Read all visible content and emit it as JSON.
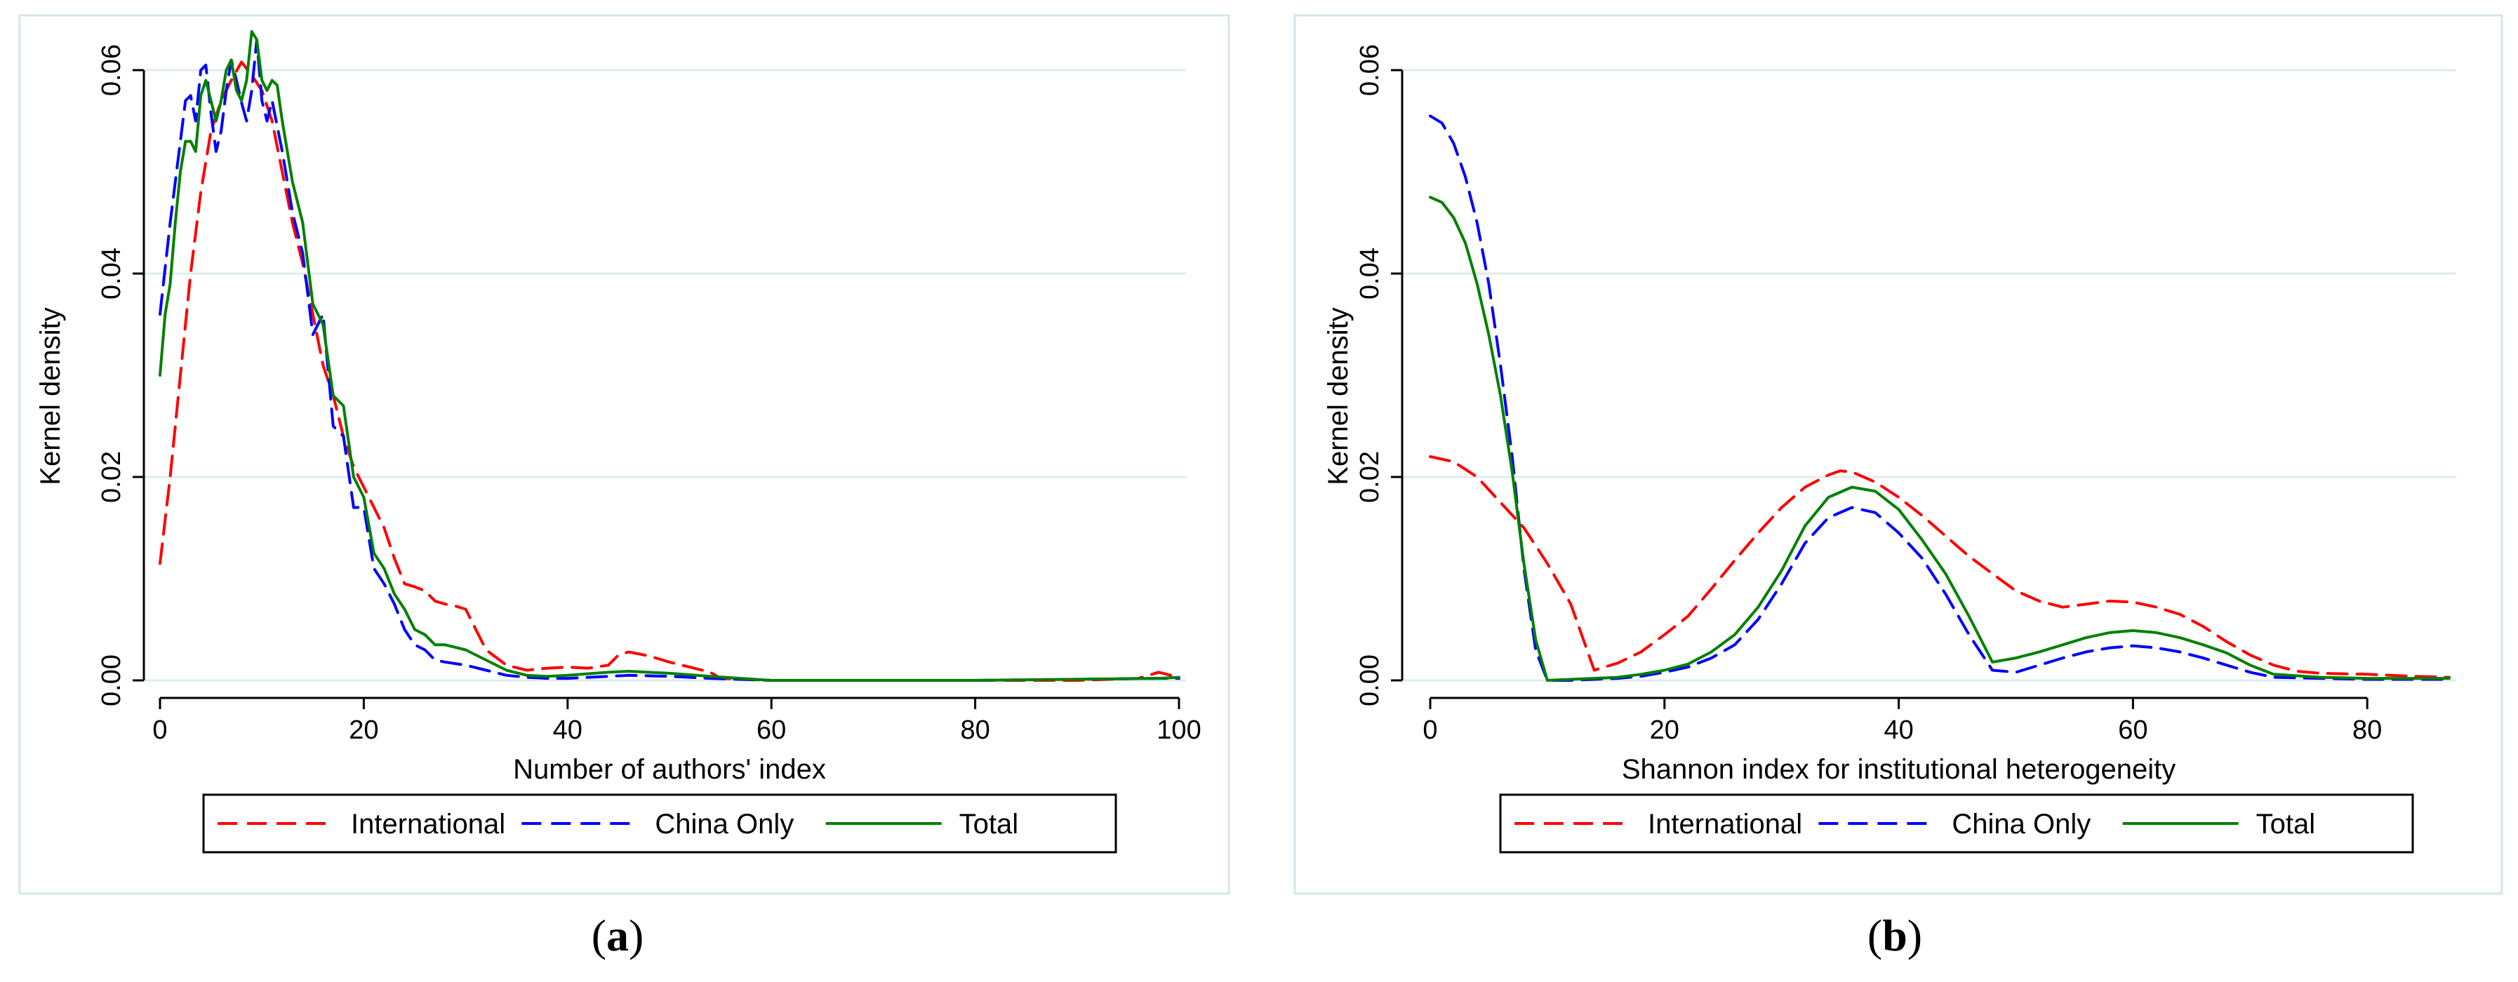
{
  "chart_data": [
    {
      "type": "line",
      "panel": "a",
      "caption": "(a)",
      "caption_letter": "a",
      "xlabel": "Number of authors' index",
      "ylabel": "Kernel density",
      "xlim": [
        0,
        100
      ],
      "ylim": [
        0,
        0.06
      ],
      "xticks": [
        0,
        20,
        40,
        60,
        80,
        100
      ],
      "yticks": [
        0,
        0.02,
        0.04,
        0.06
      ],
      "xtick_labels": [
        "0",
        "20",
        "40",
        "60",
        "80",
        "100"
      ],
      "ytick_labels": [
        "0.00",
        "0.02",
        "0.04",
        "0.06"
      ],
      "grid": "horizontal",
      "legend": [
        "International",
        "China Only",
        "Total"
      ],
      "series": [
        {
          "name": "International",
          "color": "#ff0000",
          "dash": "dashed",
          "x": [
            0,
            1,
            2,
            3,
            4,
            5,
            6,
            7,
            8,
            9,
            10,
            11,
            12,
            13,
            14,
            15,
            16,
            17,
            18,
            19,
            20,
            21,
            22,
            23,
            24,
            25,
            26,
            27,
            28,
            29,
            30,
            31,
            32,
            34,
            36,
            38,
            40,
            42,
            44,
            45,
            46,
            48,
            50,
            52,
            54,
            55,
            60,
            70,
            80,
            90,
            96,
            98,
            100
          ],
          "y": [
            0.0115,
            0.02,
            0.03,
            0.04,
            0.048,
            0.054,
            0.057,
            0.059,
            0.0608,
            0.0595,
            0.058,
            0.055,
            0.05,
            0.045,
            0.041,
            0.036,
            0.031,
            0.028,
            0.024,
            0.021,
            0.019,
            0.017,
            0.015,
            0.012,
            0.0095,
            0.0092,
            0.0088,
            0.0078,
            0.0075,
            0.0073,
            0.007,
            0.005,
            0.003,
            0.0015,
            0.001,
            0.0012,
            0.0013,
            0.0012,
            0.0015,
            0.0025,
            0.0028,
            0.0024,
            0.0018,
            0.0013,
            0.0008,
            0.0002,
            0.0,
            0.0,
            0.0,
            0.0,
            0.0002,
            0.0008,
            0.0003
          ]
        },
        {
          "name": "China Only",
          "color": "#0000ff",
          "dash": "dashed",
          "x": [
            0,
            1,
            2,
            2.5,
            3,
            3.5,
            4,
            4.5,
            5,
            5.5,
            6,
            6.5,
            7,
            7.5,
            8,
            8.5,
            9,
            9.5,
            10,
            10.5,
            11,
            12,
            13,
            14,
            15,
            16,
            17,
            18,
            19,
            20,
            21,
            22,
            23,
            24,
            25,
            26,
            27,
            28,
            30,
            32,
            34,
            36,
            38,
            40,
            44,
            46,
            50,
            54,
            60,
            80,
            98,
            100
          ],
          "y": [
            0.036,
            0.045,
            0.053,
            0.057,
            0.0575,
            0.055,
            0.06,
            0.0605,
            0.0558,
            0.052,
            0.054,
            0.058,
            0.061,
            0.059,
            0.0568,
            0.055,
            0.058,
            0.063,
            0.057,
            0.055,
            0.057,
            0.052,
            0.046,
            0.042,
            0.034,
            0.036,
            0.025,
            0.024,
            0.017,
            0.017,
            0.011,
            0.0095,
            0.0075,
            0.005,
            0.0035,
            0.003,
            0.002,
            0.0018,
            0.0015,
            0.001,
            0.0005,
            0.0003,
            0.0002,
            0.0002,
            0.0004,
            0.0005,
            0.0004,
            0.0002,
            0.0,
            0.0,
            0.0002,
            0.0002
          ]
        },
        {
          "name": "Total",
          "color": "#008000",
          "dash": "solid",
          "x": [
            0,
            0.5,
            1,
            1.5,
            2,
            2.5,
            3,
            3.5,
            4,
            4.5,
            5,
            5.5,
            6,
            6.5,
            7,
            7.5,
            8,
            8.5,
            9,
            9.5,
            10,
            10.5,
            11,
            11.5,
            12,
            13,
            14,
            15,
            16,
            17,
            18,
            19,
            20,
            21,
            22,
            23,
            24,
            25,
            26,
            27,
            28,
            30,
            32,
            34,
            36,
            38,
            40,
            44,
            46,
            50,
            54,
            60,
            80,
            98,
            100
          ],
          "y": [
            0.03,
            0.036,
            0.039,
            0.045,
            0.05,
            0.053,
            0.053,
            0.052,
            0.0575,
            0.059,
            0.057,
            0.055,
            0.057,
            0.06,
            0.061,
            0.058,
            0.057,
            0.059,
            0.0638,
            0.063,
            0.059,
            0.058,
            0.059,
            0.0585,
            0.055,
            0.049,
            0.045,
            0.037,
            0.035,
            0.028,
            0.027,
            0.02,
            0.018,
            0.0125,
            0.011,
            0.0085,
            0.007,
            0.005,
            0.0045,
            0.0035,
            0.0035,
            0.003,
            0.002,
            0.001,
            0.0005,
            0.0004,
            0.0005,
            0.0008,
            0.0009,
            0.0007,
            0.0004,
            0.0,
            0.0,
            0.0002,
            0.0003
          ]
        }
      ]
    },
    {
      "type": "line",
      "panel": "b",
      "caption": "(b)",
      "caption_letter": "b",
      "xlabel": "Shannon index for institutional heterogeneity",
      "ylabel": "Kernel density",
      "xlim": [
        0,
        87
      ],
      "ylim": [
        0,
        0.06
      ],
      "xticks": [
        0,
        20,
        40,
        60,
        80
      ],
      "yticks": [
        0,
        0.02,
        0.04,
        0.06
      ],
      "xtick_labels": [
        "0",
        "20",
        "40",
        "60",
        "80"
      ],
      "ytick_labels": [
        "0.00",
        "0.02",
        "0.04",
        "0.06"
      ],
      "grid": "horizontal",
      "legend": [
        "International",
        "China Only",
        "Total"
      ],
      "series": [
        {
          "name": "International",
          "color": "#ff0000",
          "dash": "dashed",
          "x": [
            0,
            2,
            4,
            6,
            8,
            10,
            12,
            14,
            16,
            18,
            20,
            22,
            24,
            26,
            28,
            30,
            32,
            34,
            35,
            36,
            38,
            40,
            42,
            44,
            46,
            48,
            50,
            52,
            54,
            56,
            58,
            60,
            62,
            64,
            66,
            68,
            70,
            72,
            74,
            76,
            80,
            84,
            87
          ],
          "y": [
            0.022,
            0.0215,
            0.02,
            0.0175,
            0.015,
            0.0115,
            0.0075,
            0.001,
            0.0017,
            0.0028,
            0.0045,
            0.0063,
            0.009,
            0.0118,
            0.0145,
            0.017,
            0.019,
            0.0202,
            0.0206,
            0.0205,
            0.0195,
            0.018,
            0.0162,
            0.0142,
            0.0122,
            0.0105,
            0.0088,
            0.0078,
            0.0072,
            0.0075,
            0.0078,
            0.0077,
            0.0072,
            0.0065,
            0.0053,
            0.0038,
            0.0025,
            0.0015,
            0.0009,
            0.0007,
            0.0006,
            0.0004,
            0.0003
          ]
        },
        {
          "name": "China Only",
          "color": "#0000ff",
          "dash": "dashed",
          "x": [
            0,
            1,
            2,
            3,
            4,
            5,
            6,
            7,
            8,
            9,
            10,
            12,
            14,
            16,
            18,
            20,
            22,
            24,
            26,
            28,
            30,
            32,
            34,
            36,
            38,
            40,
            42,
            44,
            46,
            48,
            50,
            52,
            54,
            56,
            58,
            60,
            62,
            64,
            66,
            68,
            70,
            72,
            76,
            80,
            84,
            87
          ],
          "y": [
            0.0555,
            0.0548,
            0.0528,
            0.0495,
            0.045,
            0.039,
            0.031,
            0.022,
            0.011,
            0.003,
            0.0,
            0.0,
            0.0001,
            0.0002,
            0.0004,
            0.0008,
            0.0013,
            0.0022,
            0.0035,
            0.006,
            0.0095,
            0.0135,
            0.016,
            0.017,
            0.0165,
            0.0145,
            0.012,
            0.0085,
            0.0045,
            0.001,
            0.0008,
            0.0015,
            0.0022,
            0.0028,
            0.0032,
            0.0034,
            0.0032,
            0.0028,
            0.0022,
            0.0015,
            0.0008,
            0.0003,
            0.0002,
            0.0001,
            0.0001,
            0.0001
          ]
        },
        {
          "name": "Total",
          "color": "#008000",
          "dash": "solid",
          "x": [
            0,
            1,
            2,
            3,
            4,
            5,
            6,
            7,
            8,
            9,
            10,
            12,
            14,
            16,
            18,
            20,
            22,
            24,
            26,
            28,
            30,
            32,
            34,
            36,
            38,
            40,
            42,
            44,
            46,
            48,
            50,
            52,
            54,
            56,
            58,
            60,
            62,
            64,
            66,
            68,
            70,
            72,
            76,
            80,
            84,
            87
          ],
          "y": [
            0.0475,
            0.047,
            0.0455,
            0.043,
            0.039,
            0.034,
            0.028,
            0.0205,
            0.0115,
            0.004,
            0.0,
            0.0001,
            0.0002,
            0.0003,
            0.0006,
            0.001,
            0.0016,
            0.0028,
            0.0045,
            0.0072,
            0.0108,
            0.0152,
            0.018,
            0.019,
            0.0186,
            0.0168,
            0.0138,
            0.0105,
            0.0063,
            0.0018,
            0.0022,
            0.0028,
            0.0035,
            0.0042,
            0.0047,
            0.0049,
            0.0047,
            0.0042,
            0.0035,
            0.0027,
            0.0015,
            0.0006,
            0.0003,
            0.0002,
            0.0002,
            0.0002
          ]
        }
      ]
    }
  ]
}
